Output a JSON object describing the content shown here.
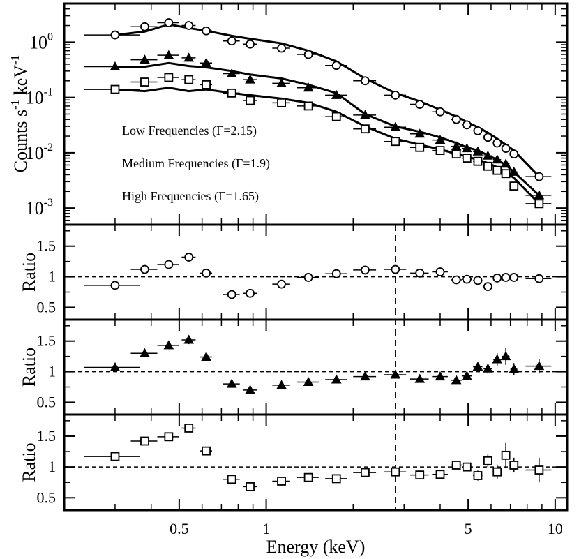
{
  "chart_data": [
    {
      "type": "line",
      "panel": "spectra",
      "title": "",
      "xlabel": "Energy (keV)",
      "ylabel": "Counts s^-1 keV^-1",
      "ylabel_parts": {
        "main": "Counts s",
        "exp1": "-1",
        "mid": " keV",
        "exp2": "-1"
      },
      "xscale": "log",
      "yscale": "log",
      "xlim": [
        0.2,
        11
      ],
      "ylim": [
        0.0005,
        5
      ],
      "yticks": [
        {
          "value": 0.001,
          "base": "10",
          "exp": "-3"
        },
        {
          "value": 0.01,
          "base": "10",
          "exp": "-2"
        },
        {
          "value": 0.1,
          "base": "10",
          "exp": "-1"
        },
        {
          "value": 1,
          "base": "10",
          "exp": "0"
        }
      ],
      "legend": [
        "Low Frequencies (Γ=2.15)",
        "Medium Frequencies (Γ=1.9)",
        "High Frequencies (Γ=1.65)"
      ],
      "x": [
        0.3,
        0.38,
        0.46,
        0.54,
        0.62,
        0.76,
        0.88,
        1.13,
        1.4,
        1.75,
        2.2,
        2.8,
        3.4,
        4.0,
        4.55,
        4.95,
        5.4,
        5.85,
        6.3,
        6.75,
        7.2,
        8.8
      ],
      "xerr_lo": [
        0.065,
        0.04,
        0.04,
        0.03,
        0.03,
        0.05,
        0.05,
        0.08,
        0.12,
        0.15,
        0.2,
        0.25,
        0.25,
        0.25,
        0.2,
        0.2,
        0.2,
        0.2,
        0.2,
        0.2,
        0.2,
        0.9
      ],
      "xerr_hi": [
        0.065,
        0.04,
        0.04,
        0.03,
        0.03,
        0.05,
        0.05,
        0.08,
        0.12,
        0.15,
        0.2,
        0.25,
        0.25,
        0.25,
        0.2,
        0.2,
        0.2,
        0.2,
        0.2,
        0.2,
        0.2,
        0.9
      ],
      "series": [
        {
          "name": "Low Frequencies",
          "marker": "open-circle",
          "values": [
            1.35,
            1.9,
            2.25,
            2.0,
            1.6,
            1.05,
            0.92,
            0.78,
            0.6,
            0.38,
            0.2,
            0.11,
            0.075,
            0.055,
            0.04,
            0.032,
            0.025,
            0.019,
            0.015,
            0.012,
            0.0095,
            0.0037
          ],
          "model": [
            1.35,
            1.55,
            2.1,
            1.8,
            1.6,
            1.3,
            1.15,
            0.95,
            0.7,
            0.45,
            0.22,
            0.12,
            0.085,
            0.06,
            0.045,
            0.036,
            0.029,
            0.023,
            0.018,
            0.014,
            0.011,
            0.0037
          ]
        },
        {
          "name": "Medium Frequencies",
          "marker": "filled-triangle",
          "values": [
            0.36,
            0.48,
            0.58,
            0.52,
            0.42,
            0.27,
            0.21,
            0.18,
            0.15,
            0.11,
            0.048,
            0.029,
            0.022,
            0.017,
            0.013,
            0.012,
            0.0105,
            0.0088,
            0.0075,
            0.0063,
            0.0045,
            0.0017
          ],
          "model": [
            0.36,
            0.36,
            0.42,
            0.37,
            0.35,
            0.3,
            0.26,
            0.22,
            0.17,
            0.12,
            0.05,
            0.03,
            0.024,
            0.019,
            0.015,
            0.0125,
            0.011,
            0.009,
            0.0075,
            0.006,
            0.0045,
            0.0017
          ]
        },
        {
          "name": "High Frequencies",
          "marker": "open-square",
          "values": [
            0.14,
            0.19,
            0.23,
            0.21,
            0.17,
            0.12,
            0.088,
            0.08,
            0.07,
            0.045,
            0.027,
            0.016,
            0.0125,
            0.011,
            0.0095,
            0.008,
            0.007,
            0.0057,
            0.0048,
            0.0042,
            0.0025,
            0.0012
          ],
          "model": [
            0.14,
            0.13,
            0.15,
            0.13,
            0.14,
            0.12,
            0.11,
            0.095,
            0.08,
            0.055,
            0.03,
            0.018,
            0.014,
            0.0115,
            0.0095,
            0.0085,
            0.0075,
            0.0065,
            0.0055,
            0.0045,
            0.0035,
            0.0012
          ]
        }
      ]
    },
    {
      "type": "scatter",
      "panel": "ratio-low",
      "ylabel": "Ratio",
      "marker": "open-circle",
      "yticks": [
        0.5,
        1,
        1.5
      ],
      "ytick_labels": [
        "0.5",
        "1",
        "1.5"
      ],
      "ylim": [
        0.3,
        1.85
      ],
      "reference_y": 1,
      "x": [
        0.3,
        0.38,
        0.46,
        0.54,
        0.62,
        0.76,
        0.88,
        1.13,
        1.4,
        1.75,
        2.2,
        2.8,
        3.4,
        4.0,
        4.55,
        4.95,
        5.4,
        5.85,
        6.3,
        6.75,
        7.2,
        8.8
      ],
      "values": [
        0.86,
        1.12,
        1.2,
        1.32,
        1.06,
        0.71,
        0.73,
        0.88,
        0.99,
        1.05,
        1.11,
        1.12,
        1.06,
        1.08,
        0.95,
        0.96,
        0.94,
        0.84,
        0.98,
        0.99,
        0.99,
        0.97
      ],
      "yerr": [
        0.03,
        0.05,
        0.05,
        0.06,
        0.04,
        0.03,
        0.03,
        0.03,
        0.03,
        0.03,
        0.03,
        0.04,
        0.04,
        0.04,
        0.04,
        0.04,
        0.04,
        0.04,
        0.05,
        0.05,
        0.05,
        0.06
      ]
    },
    {
      "type": "scatter",
      "panel": "ratio-medium",
      "ylabel": "Ratio",
      "marker": "filled-triangle",
      "yticks": [
        0.5,
        1,
        1.5
      ],
      "ytick_labels": [
        "0.5",
        "1",
        "1.5"
      ],
      "ylim": [
        0.3,
        1.85
      ],
      "reference_y": 1,
      "x": [
        0.3,
        0.38,
        0.46,
        0.54,
        0.62,
        0.76,
        0.88,
        1.13,
        1.4,
        1.75,
        2.2,
        2.8,
        3.4,
        4.0,
        4.55,
        4.95,
        5.4,
        5.85,
        6.3,
        6.75,
        7.2,
        8.8
      ],
      "values": [
        1.07,
        1.3,
        1.43,
        1.52,
        1.24,
        0.8,
        0.7,
        0.78,
        0.83,
        0.87,
        0.92,
        0.95,
        0.88,
        0.92,
        0.86,
        0.93,
        1.08,
        1.05,
        1.2,
        1.25,
        1.04,
        1.09
      ],
      "yerr": [
        0.04,
        0.06,
        0.06,
        0.07,
        0.05,
        0.03,
        0.03,
        0.03,
        0.03,
        0.03,
        0.04,
        0.04,
        0.05,
        0.05,
        0.05,
        0.05,
        0.06,
        0.08,
        0.1,
        0.14,
        0.1,
        0.12
      ]
    },
    {
      "type": "scatter",
      "panel": "ratio-high",
      "ylabel": "Ratio",
      "marker": "open-square",
      "yticks": [
        0.5,
        1,
        1.5
      ],
      "ytick_labels": [
        "0.5",
        "1",
        "1.5"
      ],
      "ylim": [
        0.3,
        1.85
      ],
      "reference_y": 1,
      "x": [
        0.3,
        0.38,
        0.46,
        0.54,
        0.62,
        0.76,
        0.88,
        1.13,
        1.4,
        1.75,
        2.2,
        2.8,
        3.4,
        4.0,
        4.55,
        4.95,
        5.4,
        5.85,
        6.3,
        6.75,
        7.2,
        8.8
      ],
      "values": [
        1.17,
        1.42,
        1.49,
        1.63,
        1.26,
        0.8,
        0.68,
        0.77,
        0.83,
        0.81,
        0.91,
        0.92,
        0.87,
        0.88,
        1.03,
        1.0,
        0.86,
        1.1,
        0.92,
        1.19,
        1.03,
        0.95
      ],
      "yerr": [
        0.04,
        0.06,
        0.06,
        0.07,
        0.05,
        0.04,
        0.04,
        0.04,
        0.04,
        0.04,
        0.04,
        0.05,
        0.05,
        0.06,
        0.06,
        0.07,
        0.08,
        0.1,
        0.12,
        0.2,
        0.12,
        0.2
      ]
    }
  ],
  "x_axis": {
    "label": "Energy (keV)",
    "ticks": [
      {
        "value": 0.5,
        "label": "0.5"
      },
      {
        "value": 1,
        "label": "1"
      },
      {
        "value": 5,
        "label": "5"
      },
      {
        "value": 10,
        "label": "10"
      }
    ],
    "minor": [
      0.3,
      0.4,
      0.6,
      0.7,
      0.8,
      0.9,
      2,
      3,
      4,
      6,
      7,
      8,
      9
    ],
    "reference_x": 2.8
  }
}
